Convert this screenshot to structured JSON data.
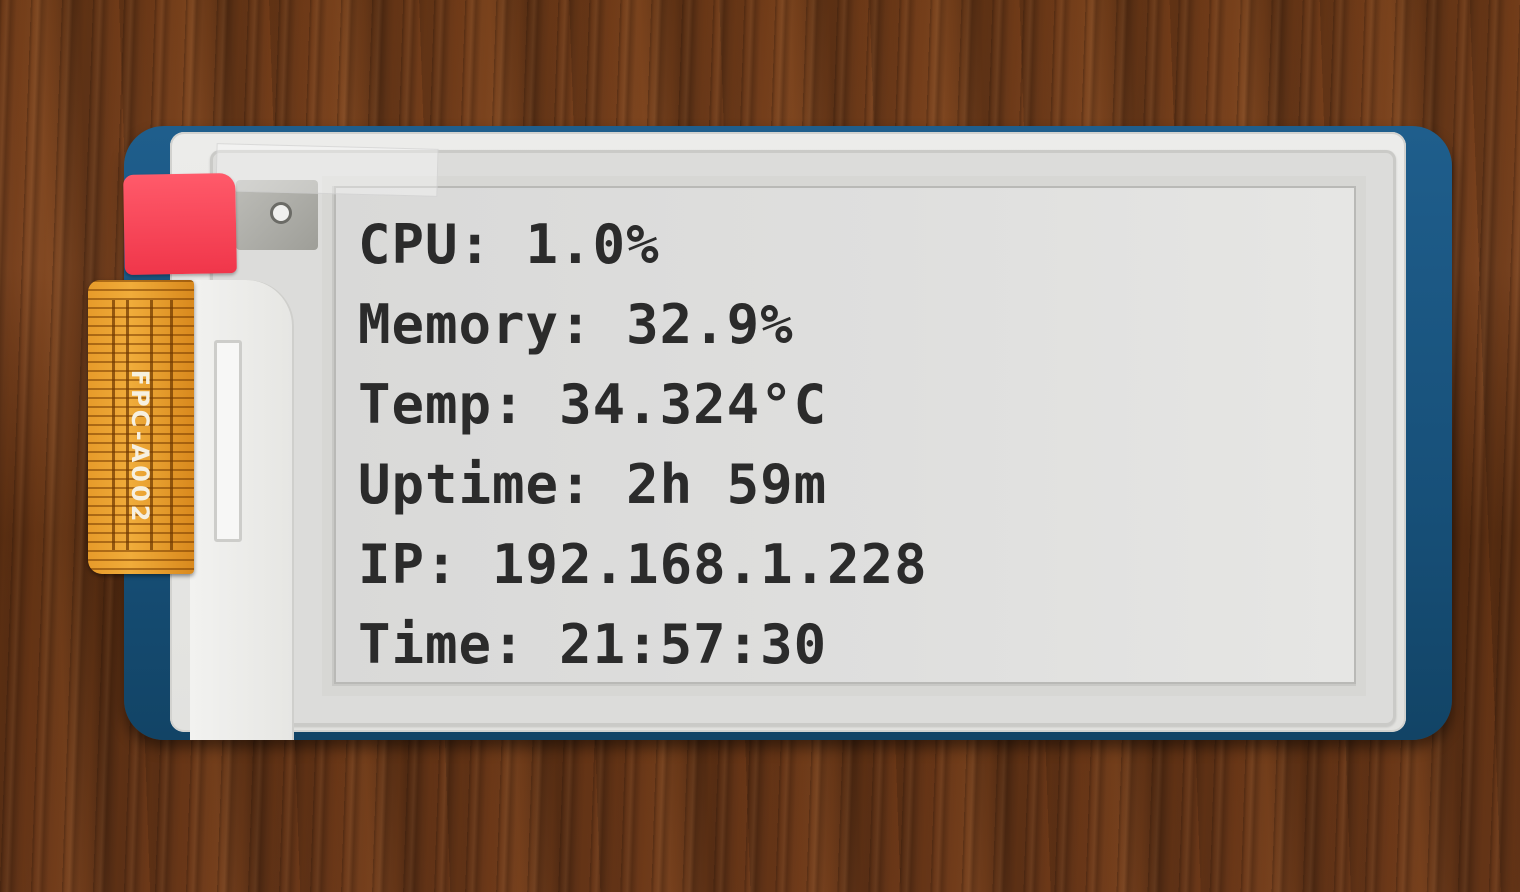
{
  "display": {
    "lines": [
      "CPU: 1.0%",
      "Memory: 32.9%",
      "Temp: 34.324°C",
      "Uptime: 2h 59m",
      "IP: 192.168.1.228",
      "Time: 21:57:30"
    ]
  },
  "flex_cable": {
    "label": "FPC-A002"
  },
  "colors": {
    "board": "#175079",
    "frame": "#e4e4e1",
    "screen": "#dfdfde",
    "text": "#2b2b2b",
    "red_tab": "#f0364a",
    "flex_cable": "#e79b2a"
  }
}
